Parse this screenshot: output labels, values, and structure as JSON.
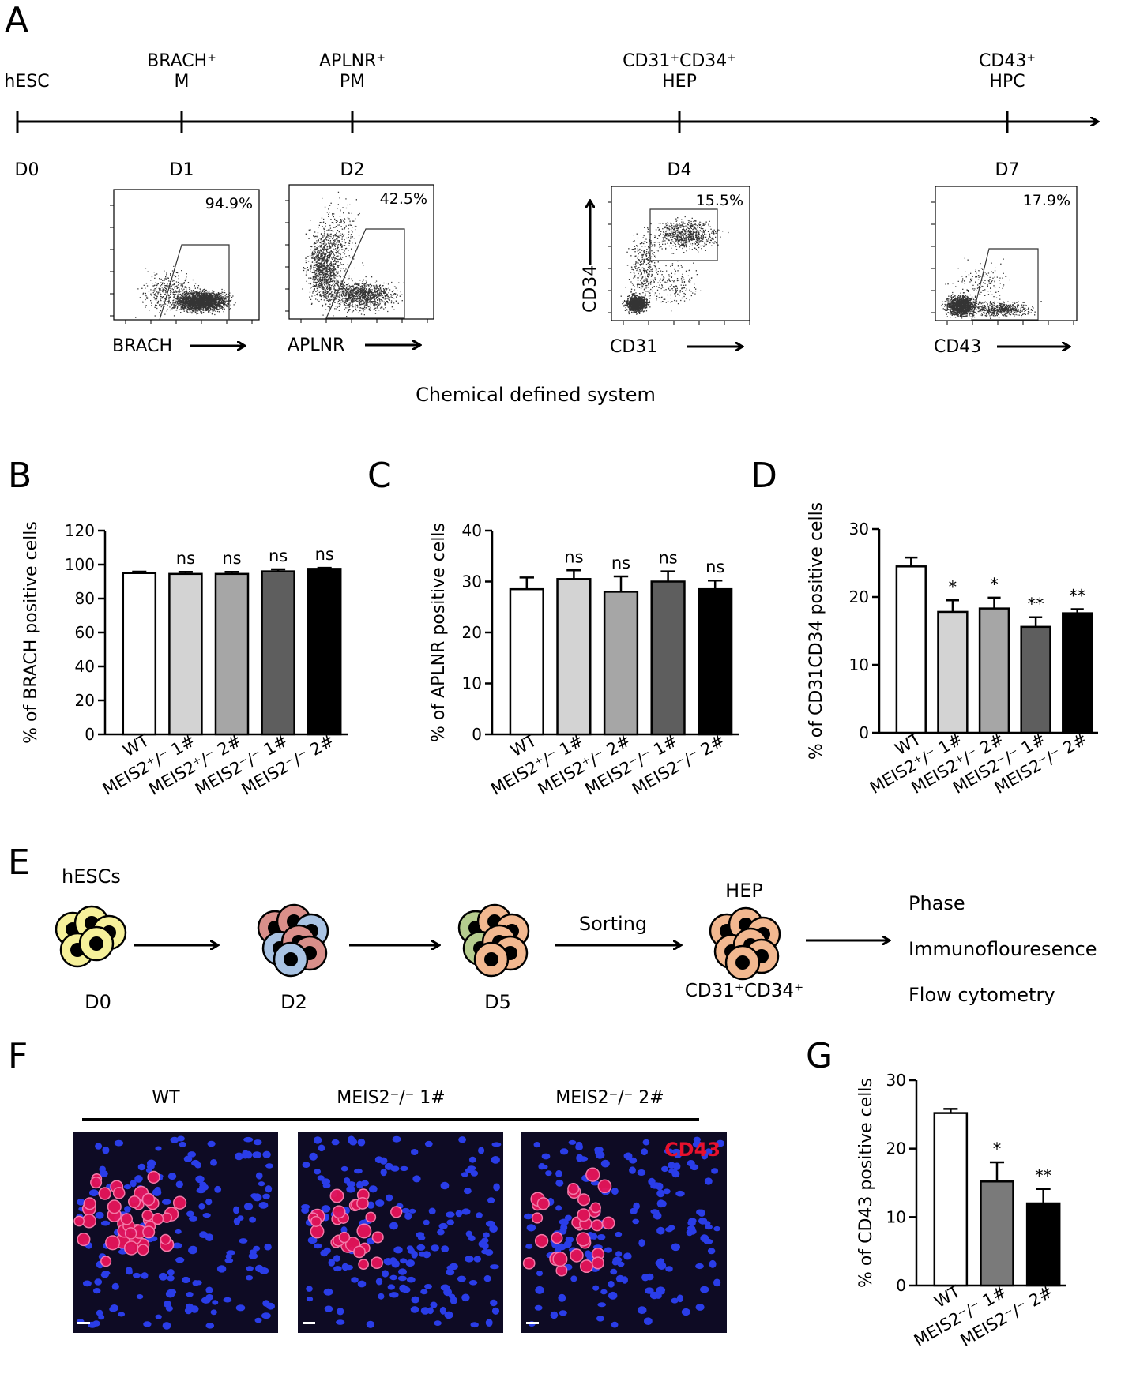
{
  "panels": {
    "A": {
      "letter": "A",
      "stages": [
        {
          "top1": "",
          "top2": "hESC",
          "day": "D0"
        },
        {
          "top1": "BRACH⁺",
          "top2": "M",
          "day": "D1"
        },
        {
          "top1": "APLNR⁺",
          "top2": "PM",
          "day": "D2"
        },
        {
          "top1": "CD31⁺CD34⁺",
          "top2": "HEP",
          "day": "D4"
        },
        {
          "top1": "CD43⁺",
          "top2": "HPC",
          "day": "D7"
        }
      ],
      "facs": [
        {
          "pct": "94.9%",
          "xlabel": "BRACH",
          "ylabel": ""
        },
        {
          "pct": "42.5%",
          "xlabel": "APLNR",
          "ylabel": ""
        },
        {
          "pct": "15.5%",
          "xlabel": "CD31",
          "ylabel": "CD34"
        },
        {
          "pct": "17.9%",
          "xlabel": "CD43",
          "ylabel": ""
        }
      ],
      "caption": "Chemical defined system"
    },
    "E": {
      "letter": "E",
      "start_label": "hESCs",
      "days": [
        "D0",
        "D2",
        "D5"
      ],
      "sorting": "Sorting",
      "hep": "HEP",
      "hep_marker": "CD31⁺CD34⁺",
      "outputs": [
        "Phase",
        "Immunoflouresence",
        "Flow  cytometry"
      ]
    },
    "F": {
      "letter": "F",
      "labels": [
        "WT",
        "MEIS2⁻/⁻ 1#",
        "MEIS2⁻/⁻ 2#"
      ],
      "stain": "CD43"
    }
  },
  "colors": {
    "cell_yellow": "#f6f09a",
    "cell_red": "#d98f8a",
    "cell_blue": "#a9c3e3",
    "cell_green": "#b5cc8e",
    "cell_orange": "#f2b890",
    "nuclei_blue": "#2a3de8",
    "cd43_red": "#e8145a",
    "bar_fills": [
      "#ffffff",
      "#d3d3d3",
      "#a6a6a6",
      "#5e5e5e",
      "#000000"
    ],
    "bar_fills_G": [
      "#ffffff",
      "#7a7a7a",
      "#000000"
    ]
  },
  "chart_data": [
    {
      "panel": "B",
      "type": "bar",
      "ylabel": "% of BRACH positive cells",
      "categories": [
        "WT",
        "MEIS2⁺/⁻ 1#",
        "MEIS2⁺/⁻ 2#",
        "MEIS2⁻/⁻ 1#",
        "MEIS2⁻/⁻ 2#"
      ],
      "values": [
        95,
        94.5,
        94.5,
        96,
        97.5
      ],
      "errors": [
        0.8,
        1.2,
        1.2,
        1.2,
        0.6
      ],
      "significance": [
        "",
        "ns",
        "ns",
        "ns",
        "ns"
      ],
      "ylim": [
        0,
        120
      ],
      "yticks": [
        0,
        20,
        40,
        60,
        80,
        100,
        120
      ]
    },
    {
      "panel": "C",
      "type": "bar",
      "ylabel": "% of APLNR positive cells",
      "categories": [
        "WT",
        "MEIS2⁺/⁻ 1#",
        "MEIS2⁺/⁻ 2#",
        "MEIS2⁻/⁻ 1#",
        "MEIS2⁻/⁻ 2#"
      ],
      "values": [
        28.5,
        30.5,
        28,
        30,
        28.5
      ],
      "errors": [
        2.3,
        1.7,
        3,
        2,
        1.7
      ],
      "significance": [
        "",
        "ns",
        "ns",
        "ns",
        "ns"
      ],
      "ylim": [
        0,
        40
      ],
      "yticks": [
        0,
        10,
        20,
        30,
        40
      ]
    },
    {
      "panel": "D",
      "type": "bar",
      "ylabel": "% of CD31CD34 positive cells",
      "categories": [
        "WT",
        "MEIS2⁺/⁻ 1#",
        "MEIS2⁺/⁻ 2#",
        "MEIS2⁻/⁻ 1#",
        "MEIS2⁻/⁻ 2#"
      ],
      "values": [
        24.5,
        17.8,
        18.3,
        15.6,
        17.6
      ],
      "errors": [
        1.3,
        1.7,
        1.6,
        1.4,
        0.6
      ],
      "significance": [
        "",
        "*",
        "*",
        "**",
        "**"
      ],
      "ylim": [
        0,
        30
      ],
      "yticks": [
        0,
        10,
        20,
        30
      ]
    },
    {
      "panel": "G",
      "type": "bar",
      "ylabel": "% of CD43 positive cells",
      "categories": [
        "WT",
        "MEIS2⁻/⁻ 1#",
        "MEIS2⁻/⁻ 2#"
      ],
      "values": [
        25.2,
        15.2,
        12
      ],
      "errors": [
        0.6,
        2.8,
        2.1
      ],
      "significance": [
        "",
        "*",
        "**"
      ],
      "ylim": [
        0,
        30
      ],
      "yticks": [
        0,
        10,
        20,
        30
      ]
    }
  ]
}
